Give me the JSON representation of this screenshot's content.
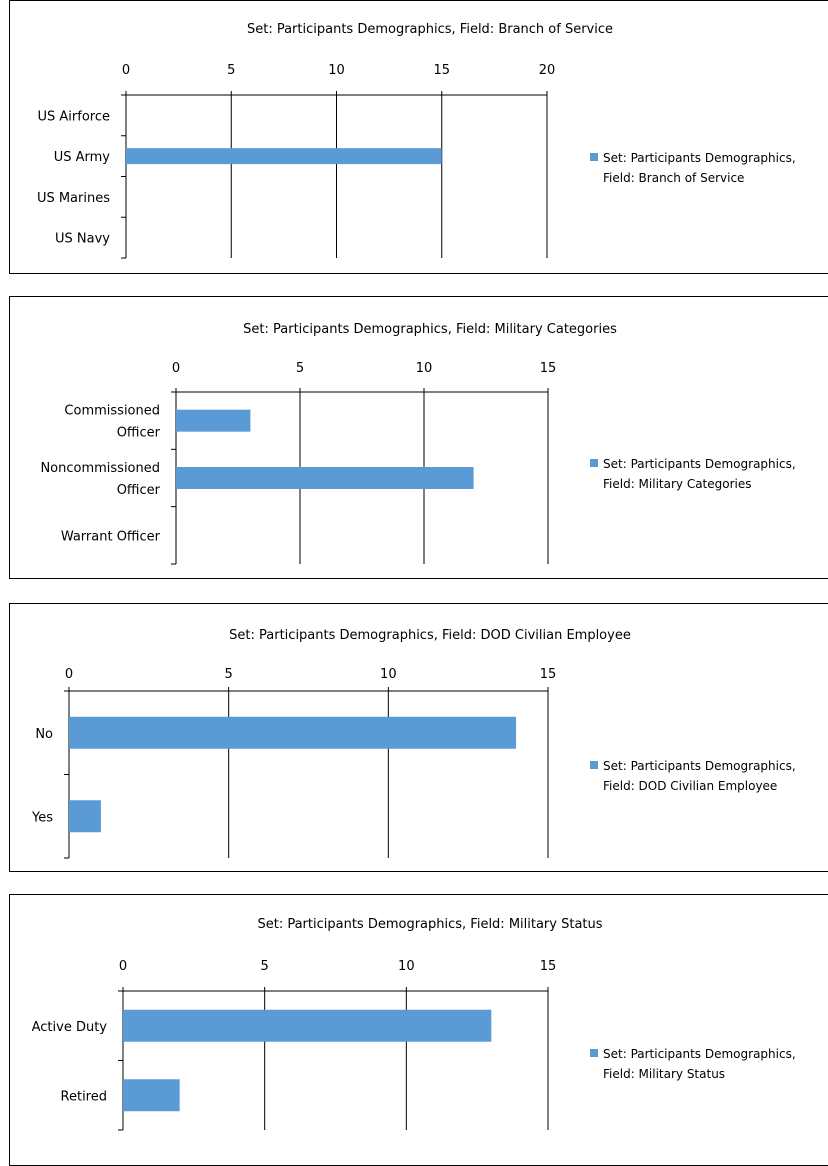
{
  "chart_data": [
    {
      "type": "bar",
      "title": "Set: Participants Demographics, Field: Branch of Service",
      "categories": [
        "US Airforce",
        "US Army",
        "US Marines",
        "US Navy"
      ],
      "series": [
        {
          "name": "Set: Participants Demographics, Field: Branch of Service",
          "values": [
            0,
            15,
            0,
            0
          ]
        }
      ],
      "xlim": [
        0,
        20
      ],
      "ticks": [
        0,
        5,
        10,
        15,
        20
      ],
      "color": "#5b9bd5",
      "legend_lines": [
        "Set: Participants Demographics,",
        "Field: Branch of Service"
      ]
    },
    {
      "type": "bar",
      "title": "Set: Participants Demographics, Field: Military Categories",
      "categories": [
        [
          "Commissioned",
          "Officer"
        ],
        [
          "Noncommissioned",
          "Officer"
        ],
        [
          "Warrant Officer"
        ]
      ],
      "series": [
        {
          "name": "Set: Participants Demographics, Field: Military Categories",
          "values": [
            3,
            12,
            0
          ]
        }
      ],
      "xlim": [
        0,
        15
      ],
      "ticks": [
        0,
        5,
        10,
        15
      ],
      "color": "#5b9bd5",
      "legend_lines": [
        "Set: Participants Demographics,",
        "Field: Military Categories"
      ]
    },
    {
      "type": "bar",
      "title": "Set: Participants Demographics, Field: DOD Civilian Employee",
      "categories": [
        "No",
        "Yes"
      ],
      "series": [
        {
          "name": "Set: Participants Demographics, Field: DOD Civilian Employee",
          "values": [
            14,
            1
          ]
        }
      ],
      "xlim": [
        0,
        15
      ],
      "ticks": [
        0,
        5,
        10,
        15
      ],
      "color": "#5b9bd5",
      "legend_lines": [
        "Set: Participants Demographics,",
        "Field: DOD Civilian Employee"
      ]
    },
    {
      "type": "bar",
      "title": "Set: Participants Demographics, Field: Military Status",
      "categories": [
        "Active Duty",
        "Retired"
      ],
      "series": [
        {
          "name": "Set: Participants Demographics, Field: Military Status",
          "values": [
            13,
            2
          ]
        }
      ],
      "xlim": [
        0,
        15
      ],
      "ticks": [
        0,
        5,
        10,
        15
      ],
      "color": "#5b9bd5",
      "legend_lines": [
        "Set: Participants Demographics,",
        "Field: Military Status"
      ]
    }
  ]
}
